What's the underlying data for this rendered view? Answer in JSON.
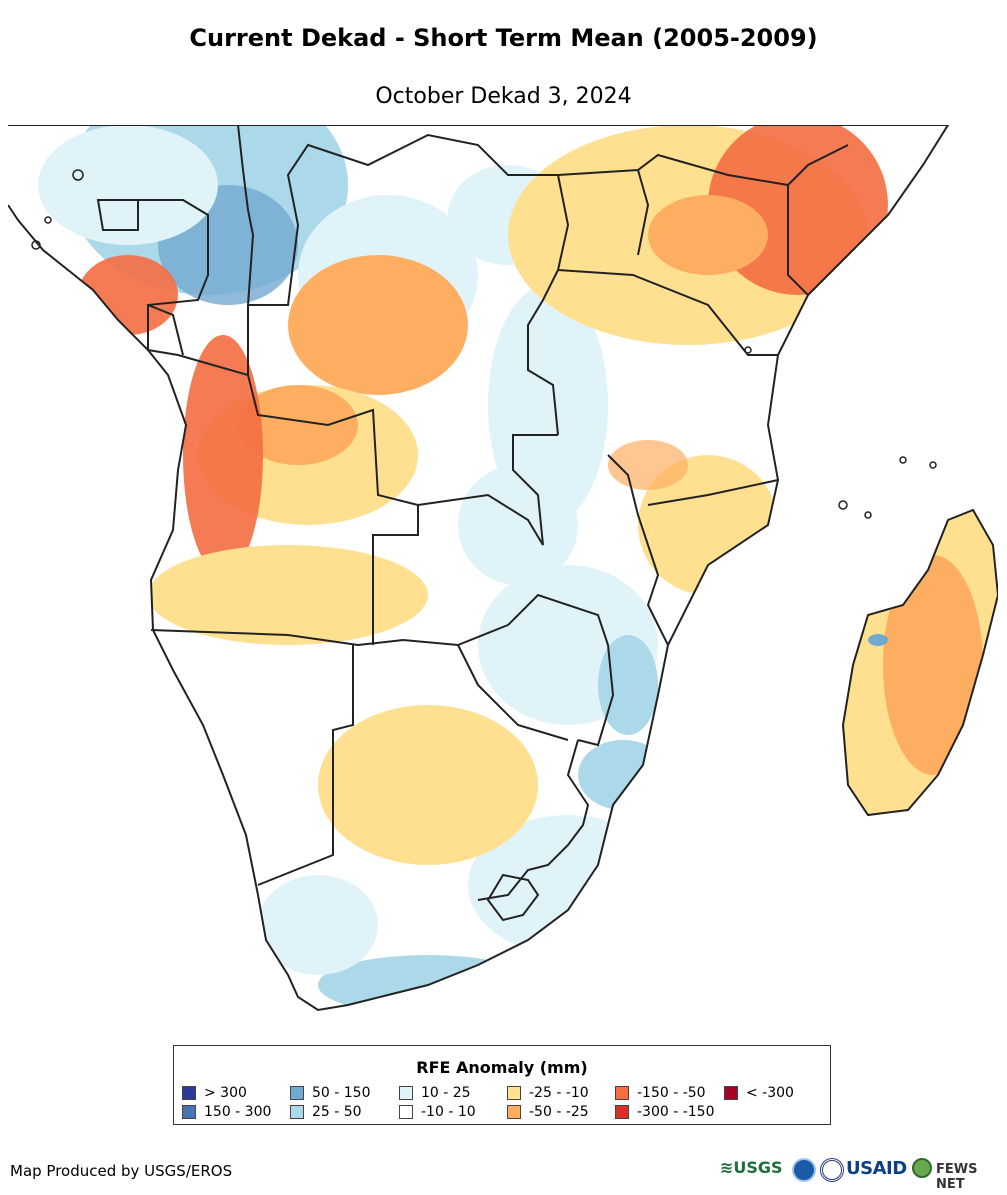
{
  "title": "Current Dekad - Short Term Mean (2005-2009)",
  "subtitle": "October Dekad 3, 2024",
  "legend": {
    "title": "RFE Anomaly (mm)",
    "items": [
      {
        "label": "> 300",
        "color": "#2b3a98"
      },
      {
        "label": "150 - 300",
        "color": "#4575b4"
      },
      {
        "label": "50 - 150",
        "color": "#74a9cf"
      },
      {
        "label": "25 - 50",
        "color": "#abd9e9"
      },
      {
        "label": "10 - 25",
        "color": "#e0f3f8"
      },
      {
        "label": "-10 - 10",
        "color": "#ffffff"
      },
      {
        "label": "-25 - -10",
        "color": "#fee090"
      },
      {
        "label": "-50 - -25",
        "color": "#fdae61"
      },
      {
        "label": "-150 - -50",
        "color": "#f46d43"
      },
      {
        "label": "-300 - -150",
        "color": "#d73027"
      },
      {
        "label": "< -300",
        "color": "#a50026"
      }
    ]
  },
  "credit": "Map Produced by USGS/EROS",
  "logos": {
    "usgs": "≋USGS",
    "usaid": "USAID",
    "fews": "FEWS NET"
  }
}
